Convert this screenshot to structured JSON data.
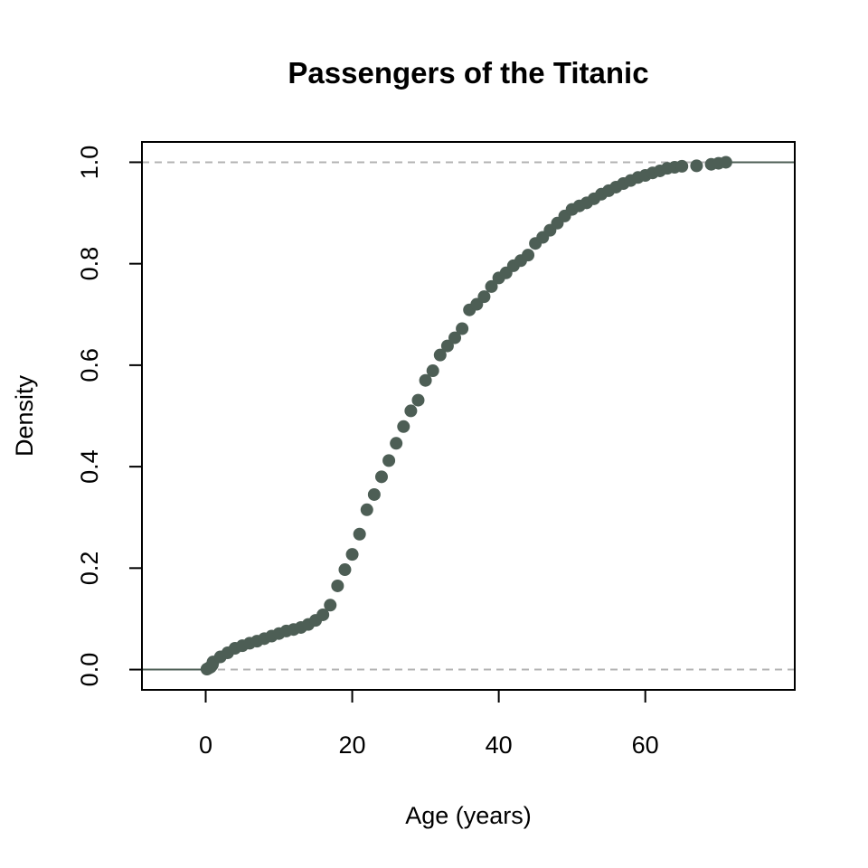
{
  "chart_data": {
    "type": "scatter",
    "title": "Passengers of the Titanic",
    "xlabel": "Age (years)",
    "ylabel": "Density",
    "xlim": [
      -8.7,
      80.4
    ],
    "ylim": [
      -0.04,
      1.04
    ],
    "xticks": [
      0,
      20,
      40,
      60
    ],
    "xtick_labels": [
      "0",
      "20",
      "40",
      "60"
    ],
    "yticks": [
      0,
      0.2,
      0.4,
      0.6,
      0.8,
      1.0
    ],
    "ytick_labels": [
      "0.0",
      "0.2",
      "0.4",
      "0.6",
      "0.8",
      "1.0"
    ],
    "reference_lines": [
      0,
      1
    ],
    "point_color": "#4d5e55",
    "reference_line_color": "#b3b3b3",
    "x": [
      0.17,
      0.42,
      0.67,
      0.83,
      0.92,
      1,
      2,
      3,
      4,
      5,
      6,
      7,
      8,
      9,
      10,
      11,
      12,
      13,
      14,
      15,
      16,
      17,
      18,
      19,
      20,
      21,
      22,
      23,
      24,
      25,
      26,
      27,
      28,
      29,
      30,
      31,
      32,
      33,
      34,
      35,
      36,
      37,
      38,
      39,
      40,
      41,
      42,
      43,
      44,
      45,
      46,
      47,
      48,
      49,
      50,
      51,
      52,
      53,
      54,
      55,
      56,
      57,
      58,
      59,
      60,
      61,
      62,
      63,
      64,
      65,
      67,
      69,
      70,
      71
    ],
    "y": [
      0.001,
      0.003,
      0.005,
      0.008,
      0.01,
      0.015,
      0.025,
      0.033,
      0.042,
      0.047,
      0.052,
      0.056,
      0.061,
      0.066,
      0.071,
      0.076,
      0.079,
      0.083,
      0.089,
      0.097,
      0.108,
      0.127,
      0.165,
      0.197,
      0.227,
      0.267,
      0.315,
      0.345,
      0.38,
      0.412,
      0.446,
      0.479,
      0.51,
      0.531,
      0.57,
      0.589,
      0.62,
      0.638,
      0.654,
      0.672,
      0.709,
      0.72,
      0.735,
      0.755,
      0.772,
      0.782,
      0.796,
      0.806,
      0.817,
      0.84,
      0.852,
      0.866,
      0.88,
      0.894,
      0.907,
      0.914,
      0.92,
      0.928,
      0.937,
      0.944,
      0.951,
      0.958,
      0.964,
      0.97,
      0.974,
      0.979,
      0.983,
      0.988,
      0.99,
      0.992,
      0.993,
      0.996,
      0.998,
      1.0
    ],
    "grid": false,
    "legend": "none"
  }
}
